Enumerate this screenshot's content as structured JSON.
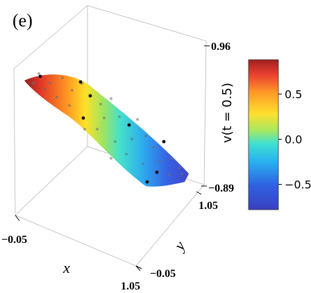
{
  "chart_data": {
    "type": "surface",
    "panel_label": "(e)",
    "xlabel": "x",
    "ylabel": "y",
    "zlabel": "v(t = 0.5)",
    "x_ticks": [
      "−0.05",
      "1.05"
    ],
    "y_ticks": [
      "−0.05",
      "1.05"
    ],
    "z_ticks": [
      "0.96",
      "−0.89"
    ],
    "xlim": [
      -0.05,
      1.05
    ],
    "ylim": [
      -0.05,
      1.05
    ],
    "zlim": [
      -0.89,
      0.96
    ],
    "colormap": "jet",
    "colorbar": {
      "ticks": [
        "0.5",
        "0.0",
        "−0.5"
      ],
      "tick_values": [
        0.5,
        0.0,
        -0.5
      ],
      "range": [
        -0.78,
        0.88
      ]
    },
    "surface_description_values": {
      "v_at_x_min": 0.88,
      "v_at_x_max": -0.78
    },
    "grid": false,
    "legend": "none"
  }
}
